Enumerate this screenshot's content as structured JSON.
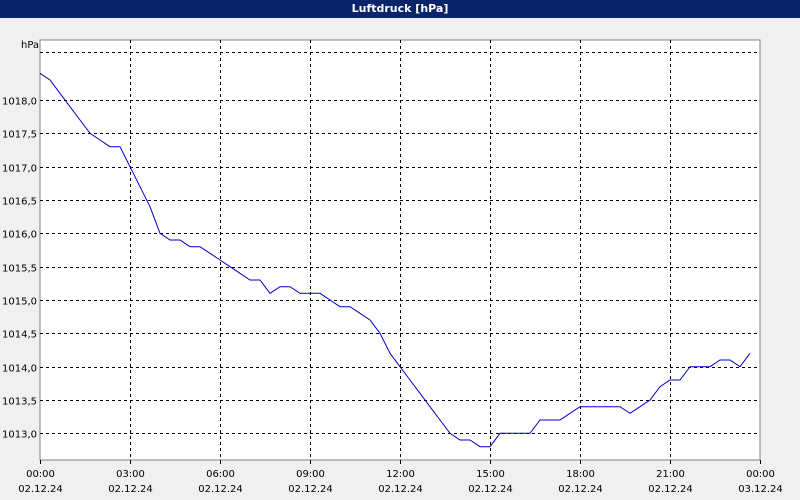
{
  "window": {
    "title": "Luftdruck [hPa]"
  },
  "chart_data": {
    "type": "line",
    "title": "Luftdruck [hPa]",
    "ylabel": "hPa",
    "xlabel": "",
    "ylim": [
      1012.6,
      1018.9
    ],
    "xlim": [
      "2024-12-02 00:00",
      "2024-12-03 00:00"
    ],
    "y_ticks": [
      "1013,0",
      "1013,5",
      "1014,0",
      "1014,5",
      "1015,0",
      "1015,5",
      "1016,0",
      "1016,5",
      "1017,0",
      "1017,5",
      "1018,0"
    ],
    "y_tick_values": [
      1013.0,
      1013.5,
      1014.0,
      1014.5,
      1015.0,
      1015.5,
      1016.0,
      1016.5,
      1017.0,
      1017.5,
      1018.0
    ],
    "x_ticks": [
      {
        "time": "00:00",
        "date": "02.12.24"
      },
      {
        "time": "03:00",
        "date": "02.12.24"
      },
      {
        "time": "06:00",
        "date": "02.12.24"
      },
      {
        "time": "09:00",
        "date": "02.12.24"
      },
      {
        "time": "12:00",
        "date": "02.12.24"
      },
      {
        "time": "15:00",
        "date": "02.12.24"
      },
      {
        "time": "18:00",
        "date": "02.12.24"
      },
      {
        "time": "21:00",
        "date": "02.12.24"
      },
      {
        "time": "00:00",
        "date": "03.12.24"
      }
    ],
    "grid": true,
    "series": [
      {
        "color": "#0000c8",
        "x": [
          "00:00",
          "00:20",
          "00:40",
          "01:00",
          "01:20",
          "01:40",
          "02:00",
          "02:20",
          "02:40",
          "03:00",
          "03:20",
          "03:40",
          "04:00",
          "04:20",
          "04:40",
          "05:00",
          "05:20",
          "05:40",
          "06:00",
          "06:20",
          "06:40",
          "07:00",
          "07:20",
          "07:40",
          "08:00",
          "08:20",
          "08:40",
          "09:00",
          "09:20",
          "09:40",
          "10:00",
          "10:20",
          "10:40",
          "11:00",
          "11:20",
          "11:40",
          "12:00",
          "12:20",
          "12:40",
          "13:00",
          "13:20",
          "13:40",
          "14:00",
          "14:20",
          "14:40",
          "15:00",
          "15:20",
          "15:40",
          "16:00",
          "16:20",
          "16:40",
          "17:00",
          "17:20",
          "17:40",
          "18:00",
          "18:20",
          "18:40",
          "19:00",
          "19:20",
          "19:40",
          "20:00",
          "20:20",
          "20:40",
          "21:00",
          "21:20",
          "21:40",
          "22:00",
          "22:20",
          "22:40",
          "23:00",
          "23:20",
          "23:40"
        ],
        "values": [
          1018.4,
          1018.3,
          1018.1,
          1017.9,
          1017.7,
          1017.5,
          1017.4,
          1017.3,
          1017.3,
          1017.0,
          1016.7,
          1016.4,
          1016.0,
          1015.9,
          1015.9,
          1015.8,
          1015.8,
          1015.7,
          1015.6,
          1015.5,
          1015.4,
          1015.3,
          1015.3,
          1015.1,
          1015.2,
          1015.2,
          1015.1,
          1015.1,
          1015.1,
          1015.0,
          1014.9,
          1014.9,
          1014.8,
          1014.7,
          1014.5,
          1014.2,
          1014.0,
          1013.8,
          1013.6,
          1013.4,
          1013.2,
          1013.0,
          1012.9,
          1012.9,
          1012.8,
          1012.8,
          1013.0,
          1013.0,
          1013.0,
          1013.0,
          1013.2,
          1013.2,
          1013.2,
          1013.3,
          1013.4,
          1013.4,
          1013.4,
          1013.4,
          1013.4,
          1013.3,
          1013.4,
          1013.5,
          1013.7,
          1013.8,
          1013.8,
          1014.0,
          1014.0,
          1014.0,
          1014.1,
          1014.1,
          1014.0,
          1014.2
        ]
      }
    ]
  }
}
